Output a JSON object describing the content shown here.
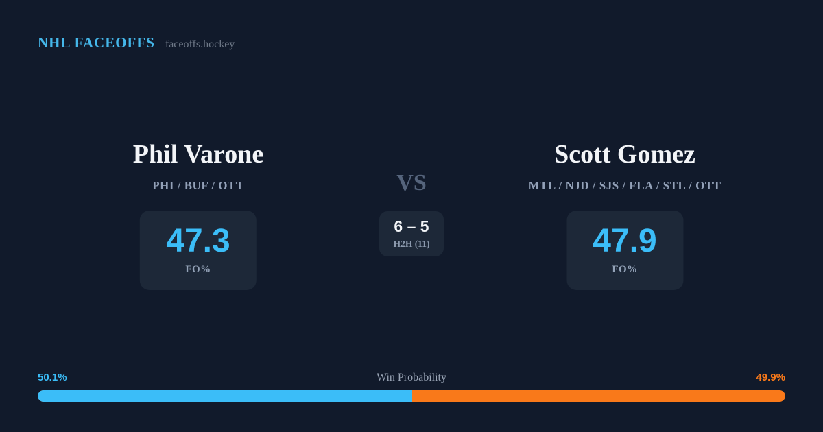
{
  "header": {
    "brand": "NHL FACEOFFS",
    "site": "faceoffs.hockey"
  },
  "players": {
    "left": {
      "name": "Phil Varone",
      "teams": "PHI / BUF / OTT",
      "fo_value": "47.3",
      "fo_label": "FO%"
    },
    "right": {
      "name": "Scott Gomez",
      "teams": "MTL / NJD / SJS / FLA / STL / OTT",
      "fo_value": "47.9",
      "fo_label": "FO%"
    }
  },
  "versus": {
    "label": "VS",
    "h2h_score": "6 – 5",
    "h2h_label": "H2H (11)"
  },
  "win_probability": {
    "title": "Win Probability",
    "left_pct_label": "50.1%",
    "right_pct_label": "49.9%",
    "left_value": 50.1,
    "right_value": 49.9
  },
  "colors": {
    "background": "#111a2b",
    "card": "#1d2838",
    "accent_blue": "#3bbdf8",
    "accent_orange": "#f9791a",
    "brand_blue": "#45b7ea",
    "text_white": "#f3f5f8",
    "text_muted": "#93a1b8"
  }
}
